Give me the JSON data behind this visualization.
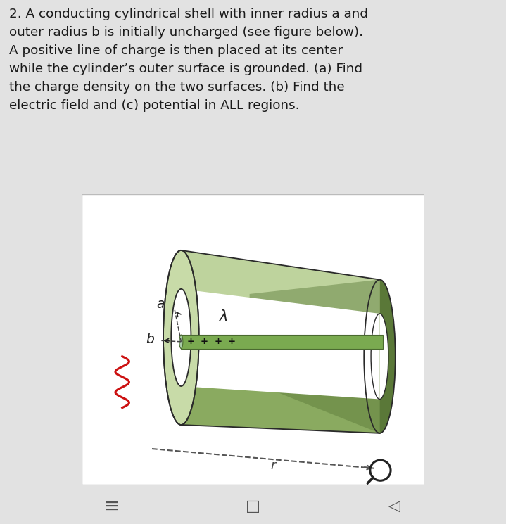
{
  "bg_color": "#e2e2e2",
  "fig_bg_color": "#e2e2e2",
  "diagram_bg": "#f0f0f0",
  "text_block": "2. A conducting cylindrical shell with inner radius a and\nouter radius b is initially uncharged (see figure below).\nA positive line of charge is then placed at its center\nwhile the cylinder’s outer surface is grounded. (a) Find\nthe charge density on the two surfaces. (b) Find the\nelectric field and (c) potential in ALL regions.",
  "text_color": "#1a1a1a",
  "text_fontsize": 13.2,
  "cyl_light": "#c8dba8",
  "cyl_mid": "#8aaa60",
  "cyl_dark": "#5a7838",
  "cyl_darker": "#3d5a25",
  "line_charge_fill": "#7aaa50",
  "line_charge_edge": "#4a6a30",
  "dashed_color": "#444444",
  "arrow_color": "#222222",
  "label_color": "#222222",
  "plus_color": "#111111",
  "red_color": "#cc1111",
  "nav_color": "#555555"
}
